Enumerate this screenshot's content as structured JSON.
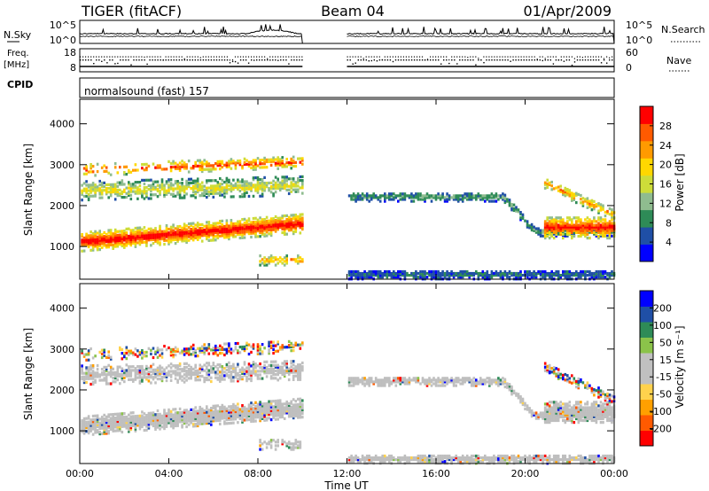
{
  "header": {
    "left": "TIGER (fitACF)",
    "center": "Beam 04",
    "right": "01/Apr/2009"
  },
  "noise_panel": {
    "left_label": "N.Sky",
    "left_ticks": [
      "10^5",
      "10^0"
    ],
    "right_label": "N.Search",
    "right_ticks": [
      "10^5",
      "10^0"
    ]
  },
  "freq_panel": {
    "left_label_1": "Freq.",
    "left_label_2": "[MHz]",
    "left_ticks": [
      "18",
      "8"
    ],
    "right_label": "Nave",
    "right_ticks": [
      "60",
      "0"
    ]
  },
  "cpid": {
    "label": "CPID",
    "value": "normalsound (fast) 157"
  },
  "colors": {
    "power_scale": [
      "#0000ff",
      "#1f4fa6",
      "#2e8b57",
      "#8fbc8f",
      "#cddc39",
      "#ffd700",
      "#ff9a00",
      "#ff5a00",
      "#ff0000"
    ],
    "velocity_scale": [
      "#ff0000",
      "#ff5a00",
      "#ffa000",
      "#ffd24d",
      "#c0c0c0",
      "#c0c0c0",
      "#8bc34a",
      "#2e8b57",
      "#1f4fa6",
      "#0000ff"
    ],
    "ground_scatter": "#bfbfbf"
  },
  "chart_data": [
    {
      "type": "heatmap",
      "name": "Power",
      "ylabel": "Slant Range [km]",
      "yticks": [
        "1000",
        "2000",
        "3000",
        "4000"
      ],
      "ylim": [
        200,
        4600
      ],
      "xlim": [
        0,
        24
      ],
      "colorbar_label": "Power [dB]",
      "colorbar_ticks": [
        "4",
        "8",
        "12",
        "16",
        "20",
        "24",
        "28"
      ],
      "colorbar_range": [
        0,
        32
      ],
      "data_gap_hours": [
        10,
        12
      ]
    },
    {
      "type": "heatmap",
      "name": "Velocity",
      "ylabel": "Slant Range [km]",
      "yticks": [
        "1000",
        "2000",
        "3000",
        "4000"
      ],
      "ylim": [
        200,
        4600
      ],
      "xlim": [
        0,
        24
      ],
      "xlabel": "Time UT",
      "xticks": [
        "00:00",
        "04:00",
        "08:00",
        "12:00",
        "16:00",
        "20:00",
        "00:00"
      ],
      "colorbar_label": "Velocity [m s⁻¹]",
      "colorbar_ticks": [
        "-200",
        "-100",
        "-50",
        "-15",
        "15",
        "50",
        "100",
        "200"
      ],
      "colorbar_range": [
        -250,
        250
      ],
      "data_gap_hours": [
        10,
        12
      ]
    }
  ]
}
